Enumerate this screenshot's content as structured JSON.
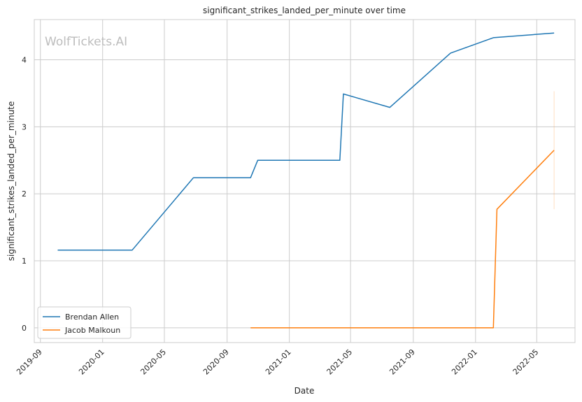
{
  "chart_data": {
    "type": "line",
    "title": "significant_strikes_landed_per_minute over time",
    "xlabel": "Date",
    "ylabel": "significant_strikes_landed_per_minute",
    "watermark": "WolfTickets.AI",
    "x_ticks": [
      "2019-09",
      "2020-01",
      "2020-05",
      "2020-09",
      "2021-01",
      "2021-05",
      "2021-09",
      "2022-01",
      "2022-05"
    ],
    "y_ticks": [
      "0",
      "1",
      "2",
      "3",
      "4"
    ],
    "xlim": [
      "2019-08-20",
      "2022-07-15"
    ],
    "ylim": [
      -0.22,
      4.6
    ],
    "grid": true,
    "legend_position": "lower-left",
    "series": [
      {
        "name": "Brendan Allen",
        "color": "#1f77b4",
        "x": [
          "2019-10-05",
          "2020-02-28",
          "2020-06-27",
          "2020-10-17",
          "2020-10-31",
          "2021-04-10",
          "2021-04-17",
          "2021-07-17",
          "2021-11-13",
          "2022-02-05",
          "2022-06-04"
        ],
        "y": [
          1.16,
          1.16,
          2.24,
          2.24,
          2.5,
          2.5,
          3.49,
          3.29,
          4.1,
          4.33,
          4.4
        ]
      },
      {
        "name": "Jacob Malkoun",
        "color": "#ff7f0e",
        "x": [
          "2020-10-17",
          "2022-02-05",
          "2022-02-12",
          "2022-06-04"
        ],
        "y": [
          0.0,
          0.0,
          1.77,
          2.65
        ],
        "error_band": {
          "x": "2022-06-04",
          "low": 1.77,
          "high": 3.53
        }
      }
    ]
  }
}
